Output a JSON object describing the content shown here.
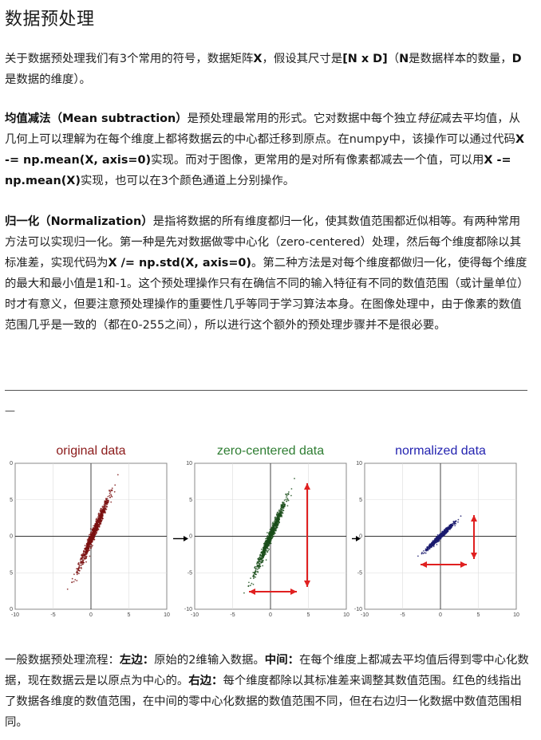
{
  "title": "数据预处理",
  "intro": {
    "t1": "关于数据预处理我们有3个常用的符号，数据矩阵",
    "b1": "X",
    "t2": "，假设其尺寸是",
    "b2": "[N x D]",
    "t3": "（",
    "b3": "N",
    "t4": "是数据样本的数量，",
    "b4": "D",
    "t5": "是数据的维度）。"
  },
  "mean_section": {
    "b_title": "均值减法（Mean subtraction）",
    "t1": "是预处理最常用的形式。它对数据中每个独立",
    "i1": "特征",
    "t2": "减去平均值，从几何上可以理解为在每个维度上都将数据云的中心都迁移到原点。在numpy中，该操作可以通过代码",
    "code1": "X -= np.mean(X, axis=0)",
    "t3": "实现。而对于图像，更常用的是对所有像素都减去一个值，可以用",
    "code2": "X -= np.mean(X)",
    "t4": "实现，也可以在3个颜色通道上分别操作。"
  },
  "norm_section": {
    "b_title": "归一化（Normalization）",
    "t1": "是指将数据的所有维度都归一化，使其数值范围都近似相等。有两种常用方法可以实现归一化。第一种是先对数据做零中心化（zero-centered）处理，然后每个维度都除以其标准差，实现代码为",
    "code1": "X /= np.std(X, axis=0)",
    "t2": "。第二种方法是对每个维度都做归一化，使得每个维度的最大和最小值是1和-1。这个预处理操作只有在确信不同的输入特征有不同的数值范围（或计量单位）时才有意义，但要注意预处理操作的重要性几乎等同于学习算法本身。在图像处理中，由于像素的数值范围几乎是一致的（都在0-255之间），所以进行这个额外的预处理步骤并不是很必要。"
  },
  "separator_dash": "—",
  "figure": {
    "panels": [
      {
        "title": "original data",
        "color": "#8b1a1a",
        "point_color": "#7a1010"
      },
      {
        "title": "zero-centered data",
        "color": "#2e7d32",
        "point_color": "#1a4d1a"
      },
      {
        "title": "normalized data",
        "color": "#2323b0",
        "point_color": "#1a1a6e"
      }
    ],
    "tick_labels": [
      "-10",
      "-5",
      "0",
      "5",
      "10"
    ],
    "arrow_color": "#e02020"
  },
  "caption": {
    "t1": "一般数据预处理流程：",
    "b1": "左边：",
    "t2": "原始的2维输入数据。",
    "b2": "中间：",
    "t3": "在每个维度上都减去平均值后得到零中心化数据，现在数据云是以原点为中心的。",
    "b3": "右边：",
    "t4": "每个维度都除以其标准差来调整其数值范围。红色的线指出了数据各维度的数值范围，在中间的零中心化数据的数值范围不同，但在右边归一化数据中数值范围相同。"
  }
}
